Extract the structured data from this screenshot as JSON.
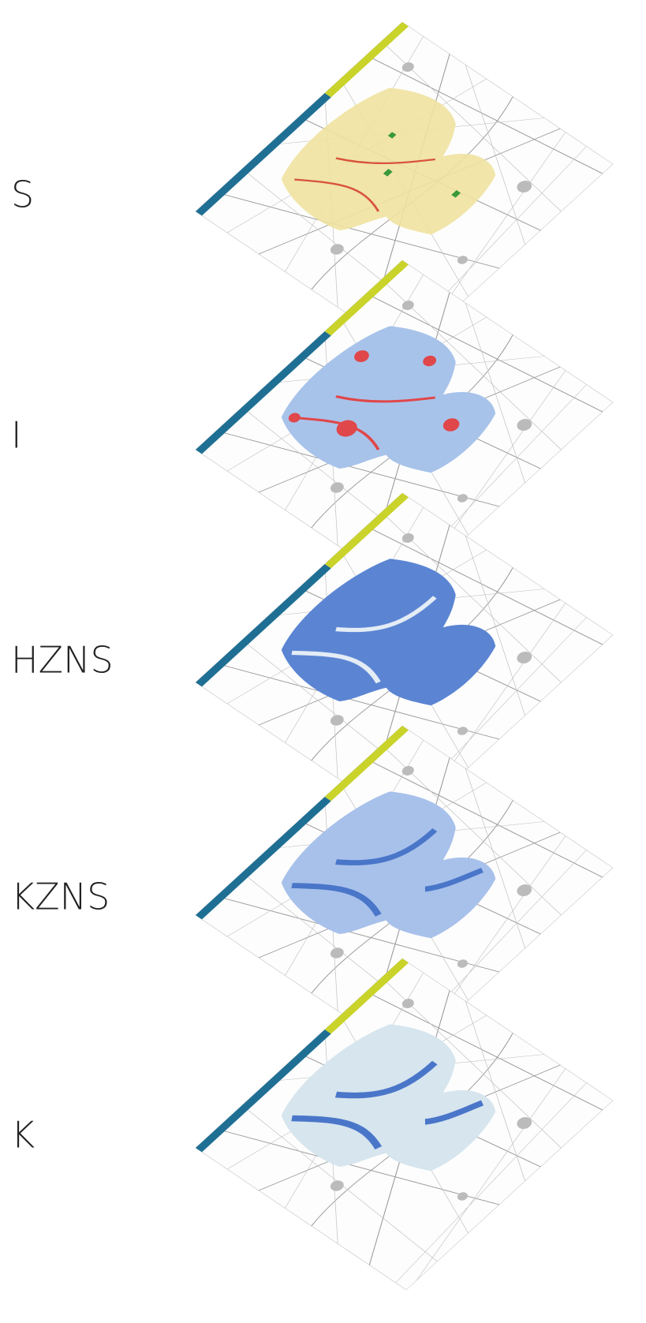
{
  "layers": [
    {
      "label": "S"
    },
    {
      "label": "I"
    },
    {
      "label": "HZNS"
    },
    {
      "label": "KZNS"
    },
    {
      "label": "K"
    }
  ]
}
